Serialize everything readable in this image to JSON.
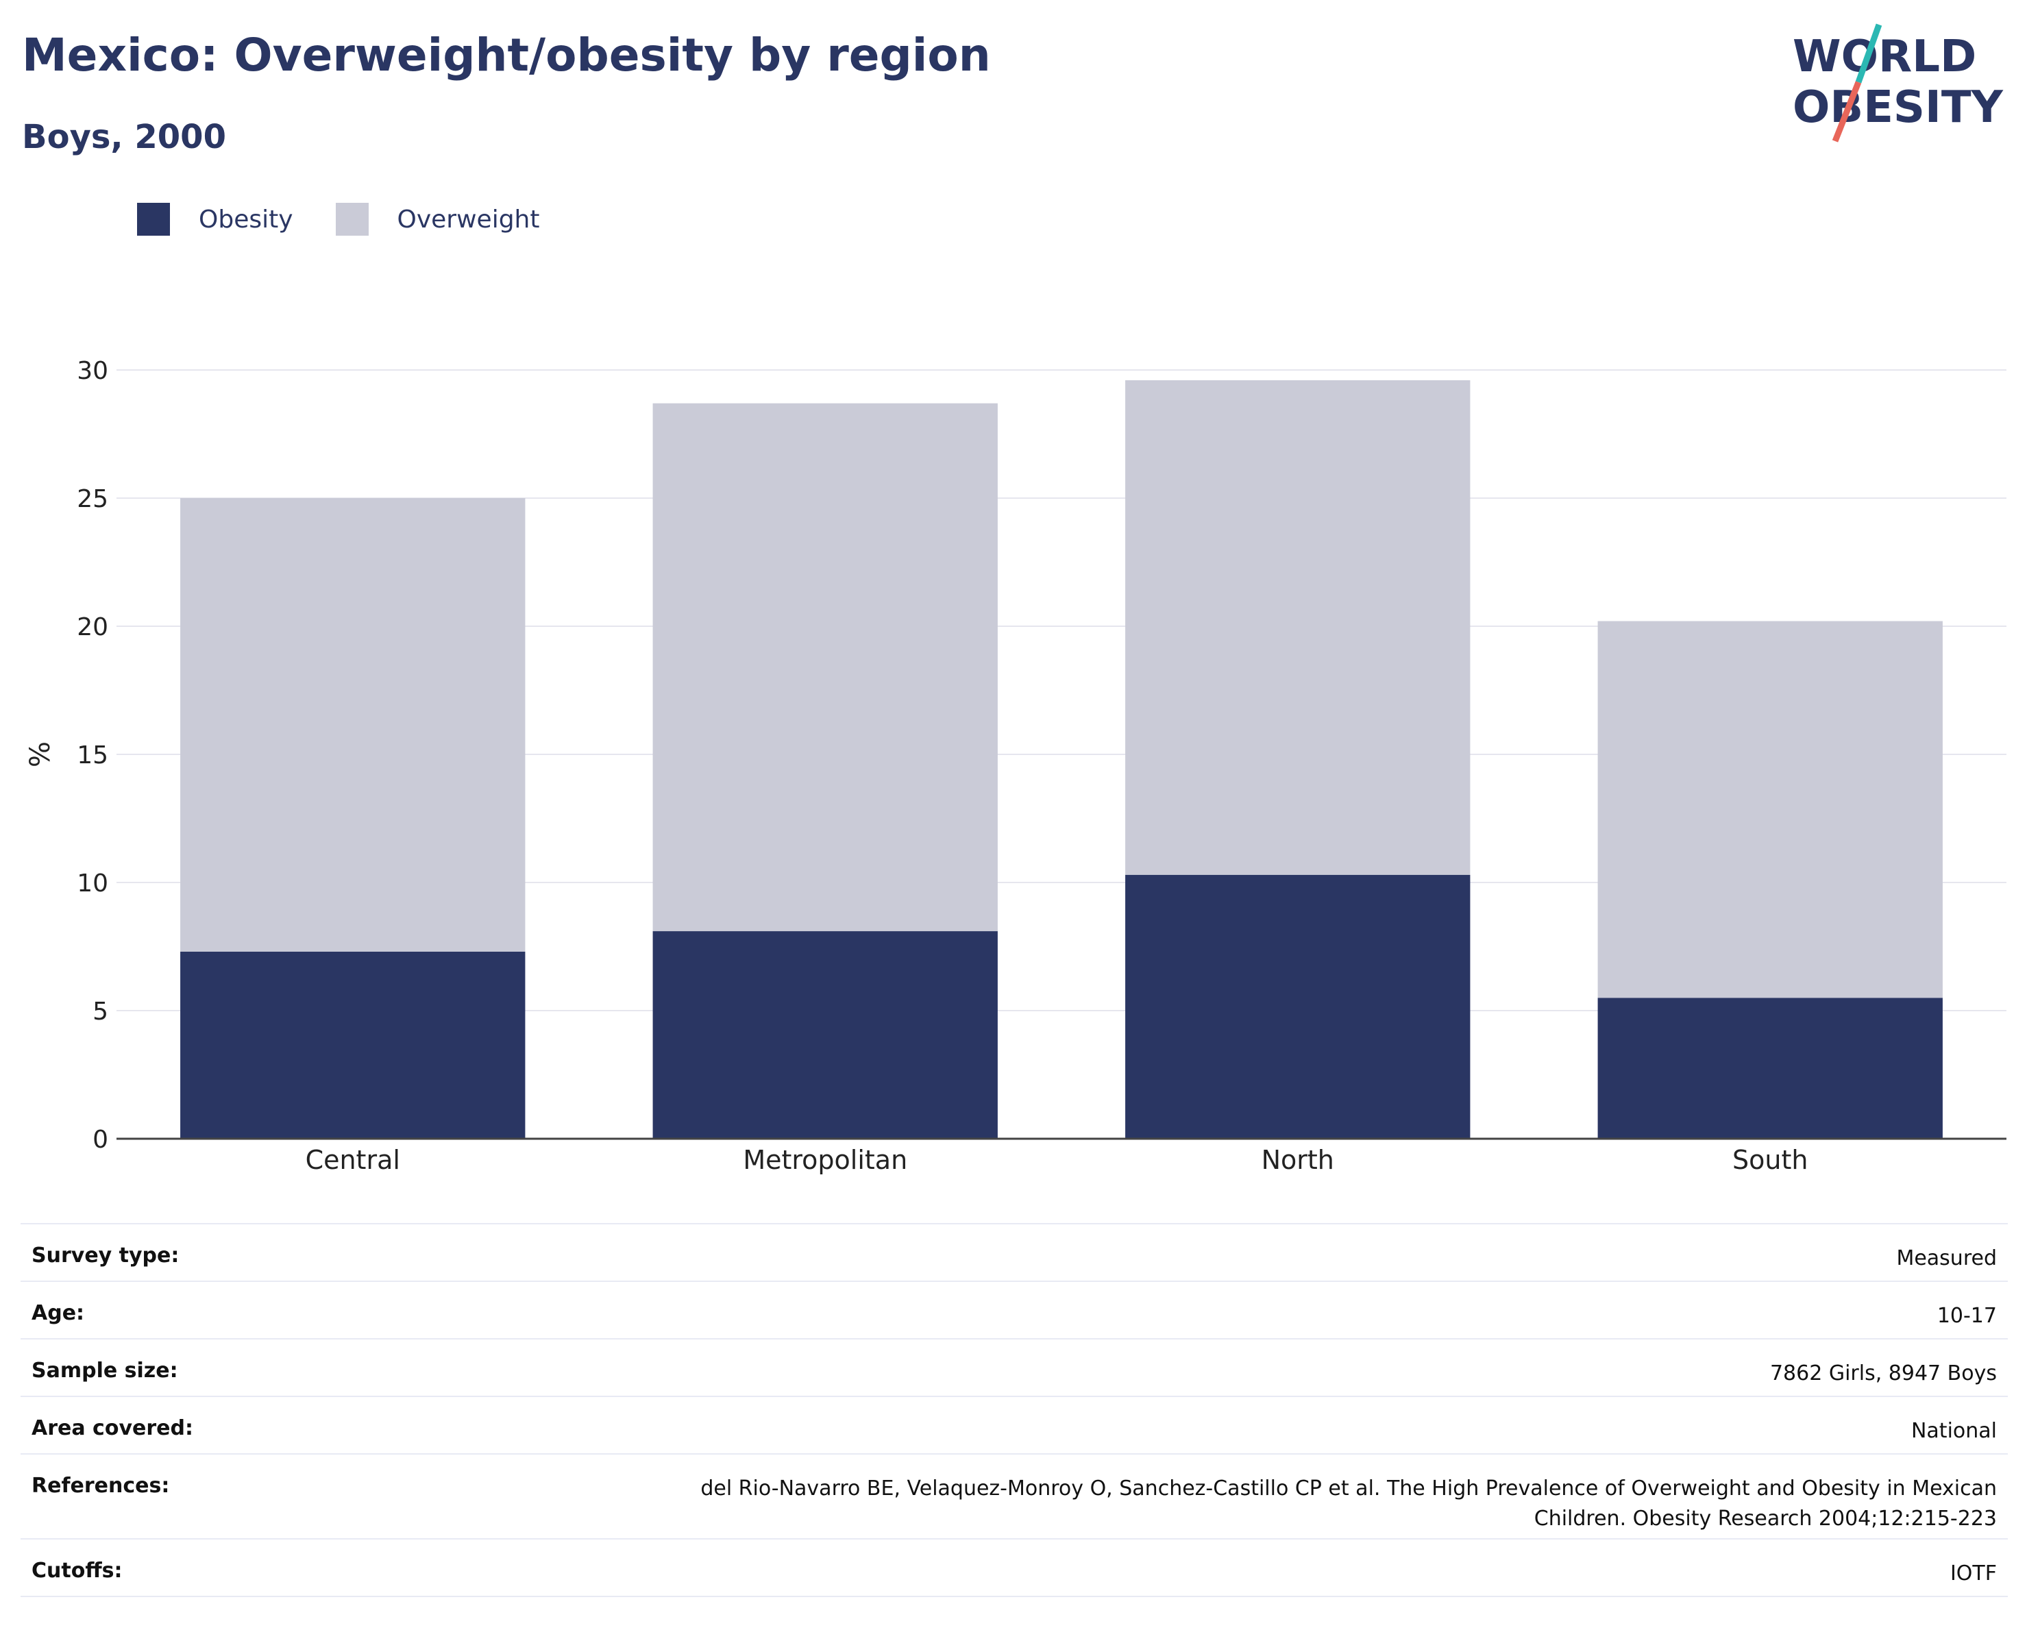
{
  "header": {
    "title": "Mexico: Overweight/obesity by region",
    "subtitle": "Boys, 2000"
  },
  "logo": {
    "line1": "WORLD",
    "line2": "OBESITY",
    "colors": {
      "text": "#2a3663",
      "slash_top": "#2bb8b3",
      "slash_bottom": "#e8665a"
    }
  },
  "legend": [
    {
      "label": "Obesity",
      "color": "#2a3663"
    },
    {
      "label": "Overweight",
      "color": "#cacbd7"
    }
  ],
  "chart_data": {
    "type": "bar",
    "stacked": true,
    "categories": [
      "Central",
      "Metropolitan",
      "North",
      "South"
    ],
    "series": [
      {
        "name": "Obesity",
        "color": "#2a3663",
        "values": [
          7.3,
          8.1,
          10.3,
          5.5
        ]
      },
      {
        "name": "Overweight",
        "color": "#cacbd7",
        "values": [
          17.7,
          20.6,
          19.3,
          14.7
        ]
      }
    ],
    "totals": [
      25.0,
      28.7,
      29.6,
      20.2
    ],
    "ylabel": "%",
    "ylim": [
      0,
      30
    ],
    "yticks": [
      0,
      5,
      10,
      15,
      20,
      25,
      30
    ],
    "grid": true,
    "legend_position": "top-left"
  },
  "info": [
    {
      "key": "Survey type:",
      "value": "Measured"
    },
    {
      "key": "Age:",
      "value": "10-17"
    },
    {
      "key": "Sample size:",
      "value": "7862 Girls, 8947 Boys"
    },
    {
      "key": "Area covered:",
      "value": "National"
    },
    {
      "key": "References:",
      "value_lines": [
        "del Rio-Navarro BE, Velaquez-Monroy O, Sanchez-Castillo CP et al. The High Prevalence of Overweight and Obesity in Mexican",
        "Children. Obesity Research 2004;12:215-223"
      ]
    },
    {
      "key": "Cutoffs:",
      "value": "IOTF"
    }
  ]
}
